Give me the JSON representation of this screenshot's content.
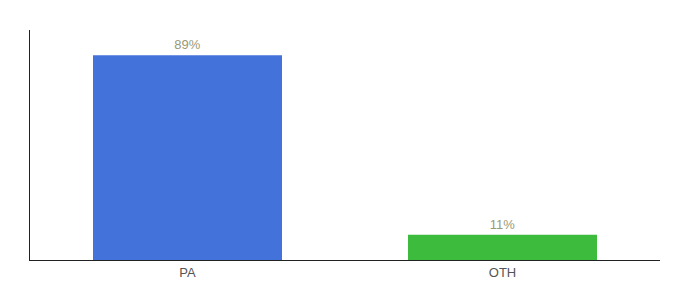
{
  "chart_data": {
    "type": "bar",
    "categories": [
      "PA",
      "OTH"
    ],
    "values": [
      89,
      11
    ],
    "colors": [
      "#4472db",
      "#3dbb3d"
    ],
    "value_labels": [
      "89%",
      "11%"
    ],
    "data_labels": true,
    "ylim": [
      0,
      100
    ],
    "yticks": [],
    "tick_labels": "x",
    "grid": false
  }
}
